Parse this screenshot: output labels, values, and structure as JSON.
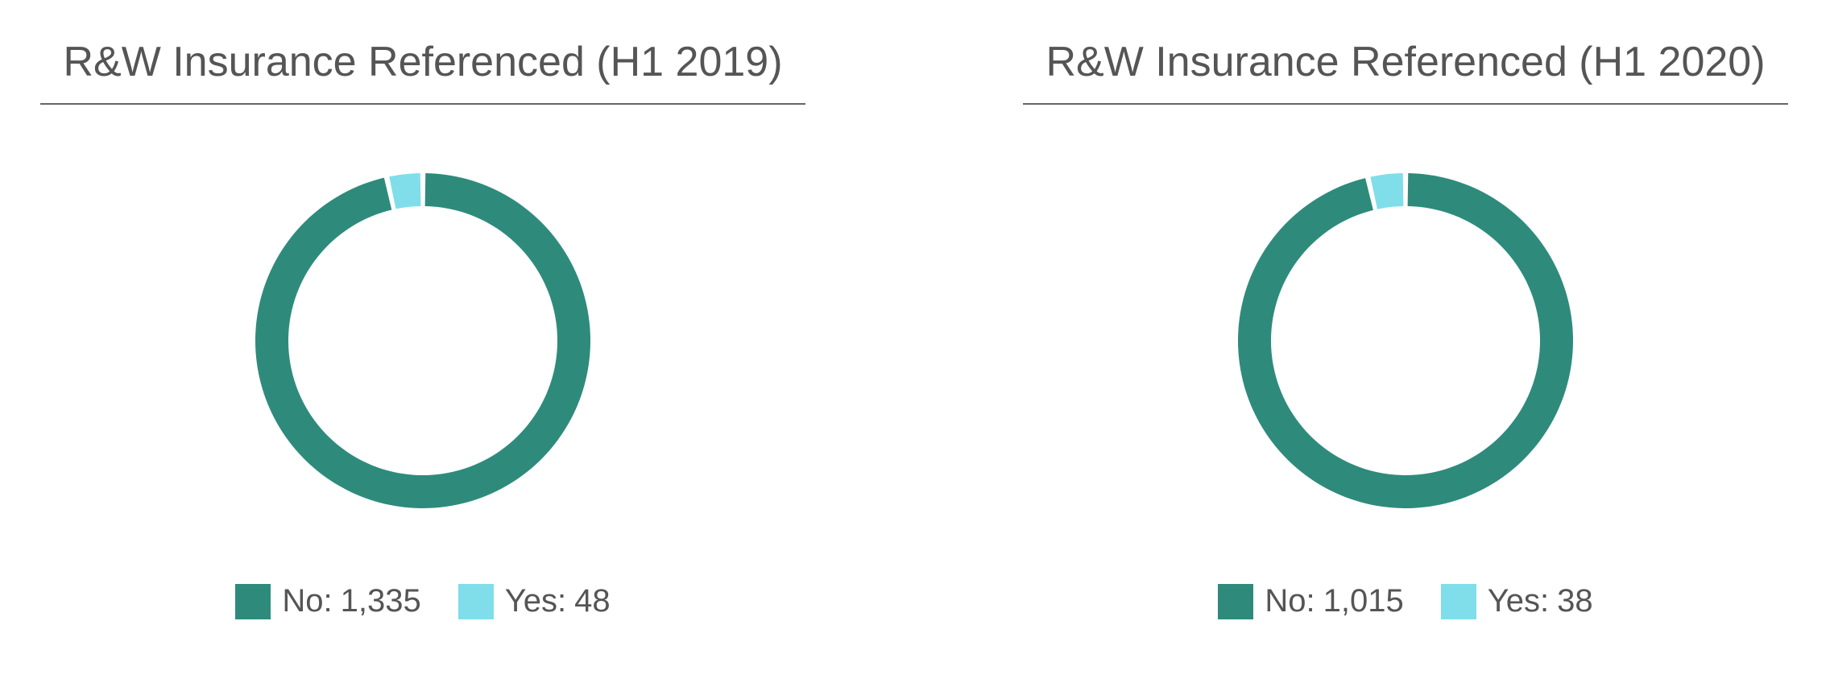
{
  "colors": {
    "no": "#2e8b7c",
    "yes": "#80deea"
  },
  "chart_data": [
    {
      "type": "pie",
      "title": "R&W Insurance Referenced (H1 2019)",
      "categories": [
        "No",
        "Yes"
      ],
      "values": [
        1335,
        48
      ],
      "value_labels": [
        "1,335",
        "48"
      ],
      "legend": "bottom"
    },
    {
      "type": "pie",
      "title": "R&W Insurance Referenced (H1 2020)",
      "categories": [
        "No",
        "Yes"
      ],
      "values": [
        1015,
        38
      ],
      "value_labels": [
        "1,015",
        "38"
      ],
      "legend": "bottom"
    }
  ]
}
